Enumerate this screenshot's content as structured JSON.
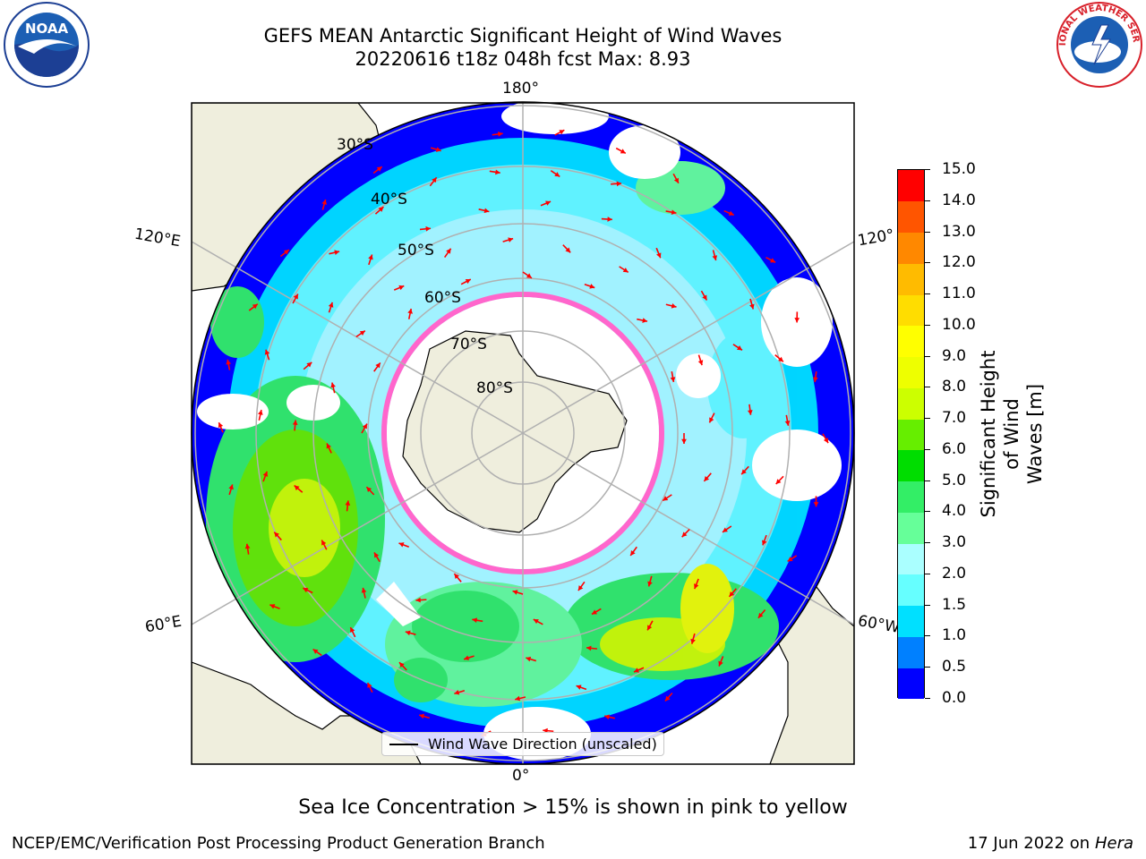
{
  "title": {
    "line1": "GEFS MEAN Antarctic Significant Height of Wind Waves",
    "line2": "20220616 t18z 048h fcst   Max: 8.93"
  },
  "logos": {
    "left": {
      "icon": "noaa-logo",
      "text": "NOAA"
    },
    "right": {
      "icon": "national-weather-service-logo",
      "text": "NATIONAL WEATHER SERVICE"
    }
  },
  "map": {
    "projection": "south-polar-stereographic",
    "longitude_labels": {
      "top": "180°",
      "bottom": "0°",
      "upper_left": "120°E",
      "upper_right": "120°",
      "lower_left": "60°E",
      "lower_right": "60°W"
    },
    "latitude_labels": [
      "30°S",
      "40°S",
      "50°S",
      "60°S",
      "70°S",
      "80°S"
    ],
    "land_color": "#efeedd",
    "ocean_no_data_color": "#ffffff",
    "wave_direction_arrow_color": "#ff0000",
    "sea_ice_colors": [
      "#ff66cc",
      "#ffcc33",
      "#ffff66"
    ]
  },
  "colorbar": {
    "label": "Significant Height of Wind Waves [m]",
    "label_line1": "Significant Height of Wind",
    "label_line2": "Waves [m]",
    "ticks": [
      "0.0",
      "0.5",
      "1.0",
      "1.5",
      "2.0",
      "3.0",
      "4.0",
      "5.0",
      "6.0",
      "7.0",
      "8.0",
      "9.0",
      "10.0",
      "11.0",
      "12.0",
      "13.0",
      "14.0",
      "15.0"
    ],
    "colors": [
      "#0000ff",
      "#0080ff",
      "#00e0ff",
      "#66ffff",
      "#aaffff",
      "#66ff99",
      "#33ee66",
      "#00dd00",
      "#66ee00",
      "#ccff00",
      "#eeff00",
      "#ffff00",
      "#ffdd00",
      "#ffbb00",
      "#ff8800",
      "#ff5500",
      "#ff0000"
    ]
  },
  "legend": {
    "label": "Wind Wave Direction (unscaled)"
  },
  "note": "Sea Ice Concentration > 15% is shown in pink to yellow",
  "footer": {
    "left": "NCEP/EMC/Verification Post Processing Product Generation Branch",
    "date": "17 Jun 2022 on",
    "host": "Hera"
  }
}
